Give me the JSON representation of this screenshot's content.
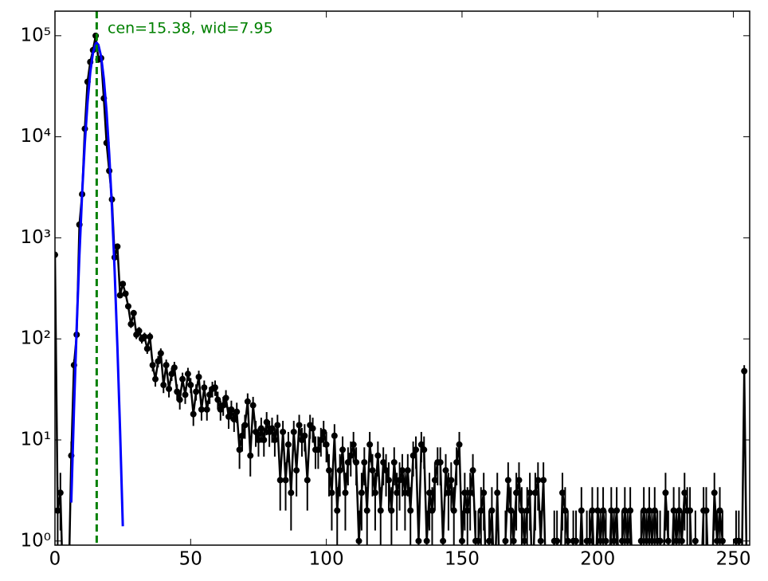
{
  "chart_data": {
    "type": "errorbar_log",
    "annotation": "cen=15.38, wid=7.95",
    "vline": 15.38,
    "vline_color": "#008000",
    "xlim": [
      0,
      256
    ],
    "ylim": [
      0.91,
      175000
    ],
    "log_y": true,
    "xticks": [
      0,
      50,
      100,
      150,
      200,
      250
    ],
    "yticks": [
      {
        "value": 1,
        "label": "10⁰"
      },
      {
        "value": 10,
        "label": "10¹"
      },
      {
        "value": 100,
        "label": "10²"
      },
      {
        "value": 1000,
        "label": "10³"
      },
      {
        "value": 10000,
        "label": "10⁴"
      },
      {
        "value": 100000,
        "label": "10⁵"
      }
    ],
    "series": [
      {
        "kind": "data",
        "color": "#000000",
        "x": [
          0,
          1,
          2,
          3,
          4,
          5,
          6,
          7,
          8,
          9,
          10,
          11,
          12,
          13,
          14,
          15,
          16,
          17,
          18,
          19,
          20,
          21,
          22,
          23,
          24,
          25,
          26,
          27,
          28,
          29,
          30,
          31,
          32,
          33,
          34,
          35,
          36,
          37,
          38,
          39,
          40,
          41,
          42,
          43,
          44,
          45,
          46,
          47,
          48,
          49,
          50,
          51,
          52,
          53,
          54,
          55,
          56,
          57,
          58,
          59,
          60,
          61,
          62,
          63,
          64,
          65,
          66,
          67,
          68,
          69,
          70,
          71,
          72,
          73,
          74,
          75,
          76,
          77,
          78,
          79,
          80,
          81,
          82,
          83,
          84,
          85,
          86,
          87,
          88,
          89,
          90,
          91,
          92,
          93,
          94,
          95,
          96,
          97,
          98,
          99,
          100,
          101,
          102,
          103,
          104,
          105,
          106,
          107,
          108,
          109,
          110,
          111,
          112,
          113,
          114,
          115,
          116,
          117,
          118,
          119,
          120,
          121,
          122,
          123,
          124,
          125,
          126,
          127,
          128,
          129,
          130,
          131,
          132,
          133,
          134,
          135,
          136,
          137,
          138,
          139,
          140,
          141,
          142,
          143,
          144,
          145,
          146,
          147,
          148,
          149,
          150,
          151,
          152,
          153,
          154,
          155,
          156,
          157,
          158,
          159,
          160,
          161,
          162,
          163,
          164,
          165,
          166,
          167,
          168,
          169,
          170,
          171,
          172,
          173,
          174,
          175,
          176,
          177,
          178,
          179,
          180,
          181,
          182,
          183,
          184,
          185,
          186,
          187,
          188,
          189,
          190,
          191,
          192,
          193,
          194,
          195,
          196,
          197,
          198,
          199,
          200,
          201,
          202,
          203,
          204,
          205,
          206,
          207,
          208,
          209,
          210,
          211,
          212,
          213,
          214,
          215,
          216,
          217,
          218,
          219,
          220,
          221,
          222,
          223,
          224,
          225,
          226,
          227,
          228,
          229,
          230,
          231,
          232,
          233,
          234,
          235,
          236,
          237,
          238,
          239,
          240,
          241,
          242,
          243,
          244,
          245,
          246,
          247,
          248,
          249,
          250,
          251,
          252,
          253,
          254,
          255
        ],
        "values": [
          680,
          2,
          3,
          0,
          0,
          0,
          7,
          55,
          110,
          1350,
          2700,
          12000,
          35000,
          55000,
          72000,
          100000,
          58000,
          60000,
          24000,
          8700,
          4600,
          2400,
          640,
          820,
          270,
          350,
          280,
          210,
          140,
          180,
          110,
          120,
          100,
          105,
          80,
          105,
          55,
          40,
          60,
          72,
          35,
          55,
          32,
          45,
          52,
          30,
          25,
          40,
          28,
          45,
          35,
          18,
          30,
          42,
          20,
          33,
          20,
          28,
          32,
          33,
          25,
          20,
          22,
          26,
          17,
          20,
          16,
          19,
          8,
          11,
          14,
          24,
          7,
          22,
          12,
          10,
          13,
          10,
          15,
          12,
          13,
          10,
          14,
          4,
          12,
          4,
          9,
          3,
          12,
          5,
          14,
          10,
          11,
          4,
          14,
          13,
          8,
          8,
          10,
          12,
          9,
          5,
          3,
          11,
          2,
          5,
          8,
          3,
          6,
          7,
          9,
          6,
          1,
          3,
          6,
          2,
          9,
          5,
          3,
          7,
          2,
          6,
          5,
          4,
          2,
          6,
          3,
          4,
          5,
          3,
          5,
          2,
          7,
          8,
          1,
          9,
          8,
          1,
          3,
          2,
          4,
          6,
          6,
          1,
          5,
          3,
          4,
          2,
          6,
          9,
          1,
          3,
          2,
          3,
          5,
          1,
          1,
          2,
          3,
          0,
          1,
          2,
          0,
          3,
          0,
          0,
          1,
          4,
          2,
          1,
          3,
          4,
          2,
          1,
          2,
          3,
          0,
          3,
          4,
          1,
          4,
          0,
          0,
          0,
          1,
          1,
          0,
          3,
          2,
          1,
          0,
          1,
          1,
          0,
          2,
          0,
          1,
          1,
          2,
          0,
          2,
          1,
          2,
          1,
          0,
          2,
          1,
          2,
          0,
          1,
          2,
          1,
          2,
          0,
          0,
          0,
          1,
          2,
          1,
          2,
          1,
          2,
          1,
          1,
          0,
          3,
          1,
          0,
          2,
          1,
          2,
          1,
          3,
          2,
          2,
          0,
          1,
          0,
          0,
          2,
          2,
          0,
          0,
          3,
          1,
          2,
          1,
          0,
          0,
          0,
          0,
          1,
          1,
          0,
          48,
          0
        ],
        "errors": [
          26.08,
          1.41,
          1.73,
          0,
          0,
          0,
          2.65,
          7.42,
          10.49,
          36.74,
          51.96,
          109.54,
          187.08,
          234.52,
          268.33,
          316.23,
          240.83,
          244.95,
          154.92,
          93.27,
          67.82,
          48.99,
          25.3,
          28.64,
          16.43,
          18.71,
          16.73,
          14.49,
          11.83,
          13.42,
          10.49,
          10.95,
          10,
          10.25,
          8.94,
          10.25,
          7.42,
          6.32,
          7.75,
          8.49,
          5.92,
          7.42,
          5.66,
          6.71,
          7.21,
          5.48,
          5,
          6.32,
          5.29,
          6.71,
          5.92,
          4.24,
          5.48,
          6.48,
          4.47,
          5.74,
          4.47,
          5.29,
          5.66,
          5.74,
          5,
          4.47,
          4.69,
          5.1,
          4.12,
          4.47,
          4,
          4.36,
          2.83,
          3.32,
          3.74,
          4.9,
          2.65,
          4.69,
          3.46,
          3.16,
          3.61,
          3.16,
          3.87,
          3.46,
          3.61,
          3.16,
          3.74,
          2,
          3.46,
          2,
          3,
          1.73,
          3.46,
          2.24,
          3.74,
          3.16,
          3.32,
          2,
          3.74,
          3.61,
          2.83,
          2.83,
          3.16,
          3.46,
          3,
          2.24,
          1.73,
          3.32,
          1.41,
          2.24,
          2.83,
          1.73,
          2.45,
          2.65,
          3,
          2.45,
          1,
          1.73,
          2.45,
          1.41,
          3,
          2.24,
          1.73,
          2.65,
          1.41,
          2.45,
          2.24,
          2,
          1.41,
          2.45,
          1.73,
          2,
          2.24,
          1.73,
          2.24,
          1.41,
          2.65,
          2.83,
          1,
          3,
          2.83,
          1,
          1.73,
          1.41,
          2,
          2.45,
          2.45,
          1,
          2.24,
          1.73,
          2,
          1.41,
          2.45,
          3,
          1,
          1.73,
          1.41,
          1.73,
          2.24,
          1,
          1,
          1.41,
          1.73,
          0,
          1,
          1.41,
          0,
          1.73,
          0,
          0,
          1,
          2,
          1.41,
          1,
          1.73,
          2,
          1.41,
          1,
          1.41,
          1.73,
          0,
          1.73,
          2,
          1,
          2,
          0,
          0,
          0,
          1,
          1,
          0,
          1.73,
          1.41,
          1,
          0,
          1,
          1,
          0,
          1.41,
          0,
          1,
          1,
          1.41,
          0,
          1.41,
          1,
          1.41,
          1,
          0,
          1.41,
          1,
          1.41,
          0,
          1,
          1.41,
          1,
          1.41,
          0,
          0,
          0,
          1,
          1.41,
          1,
          1.41,
          1,
          1.41,
          1,
          1,
          0,
          1.73,
          1,
          0,
          1.41,
          1,
          1.41,
          1,
          1.73,
          1.41,
          1.41,
          0,
          1,
          0,
          0,
          1.41,
          1.41,
          0,
          0,
          1.73,
          1,
          1.41,
          1,
          0,
          0,
          0,
          0,
          1,
          1,
          0,
          6.93,
          0
        ]
      },
      {
        "kind": "fit",
        "color": "#0000ff",
        "x": [
          6,
          7,
          8,
          9,
          10,
          11,
          12,
          13,
          14,
          15,
          15.38,
          16,
          17,
          18,
          19,
          20,
          21,
          22,
          23,
          24,
          25
        ],
        "values": [
          2.4,
          19.9,
          130,
          665,
          2720,
          8670,
          21800,
          43300,
          67700,
          83600,
          85000,
          81200,
          62200,
          37500,
          17900,
          6700,
          1980,
          459,
          84,
          12.2,
          1.4
        ]
      }
    ]
  }
}
